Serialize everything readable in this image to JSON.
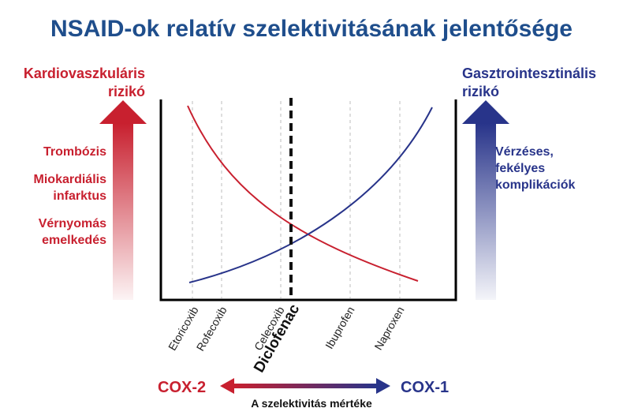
{
  "title": "NSAID-ok relatív szelektivitásának jelentősége",
  "left": {
    "title_line1": "Kardiovaszkuláris",
    "title_line2": "rizikó",
    "risks": [
      "Trombózis",
      "Miokardiális",
      "infarktus",
      "Vérnyomás",
      "emelkedés"
    ]
  },
  "right": {
    "title_line1": "Gasztrointesztinális",
    "title_line2": "rizikó",
    "risks": [
      "Vérzéses,",
      "fekélyes",
      "komplikációk"
    ]
  },
  "drugs": [
    "Etoricoxib",
    "Rofecoxib",
    "Celecoxib",
    "Diclofenac",
    "Ibuprofen",
    "Naproxen"
  ],
  "highlighted_drug": "Diclofenac",
  "axis": {
    "left_label": "COX-2",
    "right_label": "COX-1",
    "caption": "A szelektivitás mértéke"
  },
  "colors": {
    "cardio": "#c8202f",
    "gastro": "#28348a",
    "title": "#1f4e8c"
  },
  "icons": [
    "cardiovascular-gradient-arrow-icon",
    "gastrointestinal-gradient-arrow-icon",
    "cox-double-arrow-icon"
  ]
}
